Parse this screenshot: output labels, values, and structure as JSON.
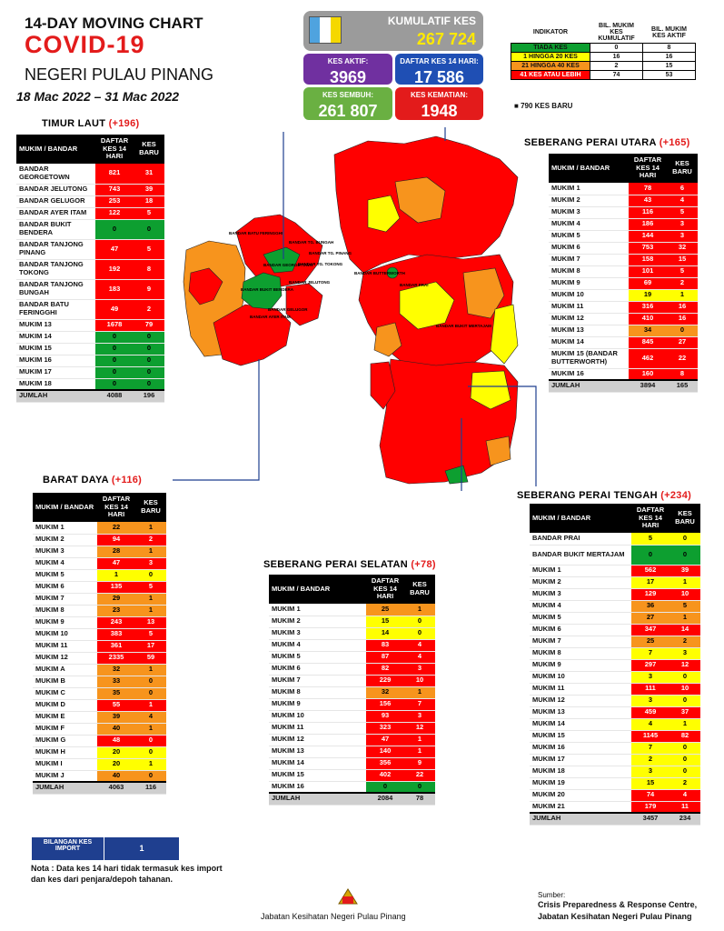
{
  "header": {
    "line1": "14-DAY MOVING CHART",
    "line2": "COVID-19",
    "line3": "NEGERI PULAU PINANG",
    "dates": "18 Mac 2022 – 31 Mac 2022"
  },
  "stats": {
    "kumulatif_label": "KUMULATIF KES",
    "kumulatif_value": "267 724",
    "aktif_label": "KES AKTIF:",
    "aktif_value": "3969",
    "daftar_label": "DAFTAR KES 14 HARI:",
    "daftar_value": "17 586",
    "sembuh_label": "KES SEMBUH:",
    "sembuh_value": "261 807",
    "kematian_label": "KES KEMATIAN:",
    "kematian_value": "1948"
  },
  "indicator": {
    "h1": "INDIKATOR",
    "h2": "BIL. MUKIM KES KUMULATIF",
    "h3": "BIL. MUKIM KES AKTIF",
    "rows": [
      {
        "label": "TIADA KES",
        "cum": "0",
        "act": "8",
        "color": "#0d9f30"
      },
      {
        "label": "1 HINGGA 20 KES",
        "cum": "16",
        "act": "16",
        "color": "#ffff00"
      },
      {
        "label": "21 HINGGA 40 KES",
        "cum": "2",
        "act": "15",
        "color": "#f7941d"
      },
      {
        "label": "41 KES ATAU LEBIH",
        "cum": "74",
        "act": "53",
        "color": "#ff0000"
      }
    ],
    "new_cases": "790 KES BARU"
  },
  "colors": {
    "red": "#ff0000",
    "orange": "#f7941d",
    "yellow": "#ffff00",
    "green": "#0d9f30",
    "title_red": "#e31b1b",
    "blue": "#1f3f8f"
  },
  "timur_laut": {
    "title": "TIMUR LAUT",
    "plus": "(+196)",
    "head": [
      "MUKIM / BANDAR",
      "DAFTAR KES 14 HARI",
      "KES BARU"
    ],
    "rows": [
      [
        "BANDAR GEORGETOWN",
        "821",
        "31",
        "r"
      ],
      [
        "BANDAR JELUTONG",
        "743",
        "39",
        "r"
      ],
      [
        "BANDAR GELUGOR",
        "253",
        "18",
        "r"
      ],
      [
        "BANDAR AYER ITAM",
        "122",
        "5",
        "r"
      ],
      [
        "BANDAR BUKIT BENDERA",
        "0",
        "0",
        "g"
      ],
      [
        "BANDAR TANJONG PINANG",
        "47",
        "5",
        "r"
      ],
      [
        "BANDAR TANJONG TOKONG",
        "192",
        "8",
        "r"
      ],
      [
        "BANDAR TANJONG BUNGAH",
        "183",
        "9",
        "r"
      ],
      [
        "BANDAR BATU FERINGGHI",
        "49",
        "2",
        "r"
      ],
      [
        "MUKIM 13",
        "1678",
        "79",
        "r"
      ],
      [
        "MUKIM 14",
        "0",
        "0",
        "g"
      ],
      [
        "MUKIM 15",
        "0",
        "0",
        "g"
      ],
      [
        "MUKIM 16",
        "0",
        "0",
        "g"
      ],
      [
        "MUKIM 17",
        "0",
        "0",
        "g"
      ],
      [
        "MUKIM 18",
        "0",
        "0",
        "g"
      ]
    ],
    "total": [
      "JUMLAH",
      "4088",
      "196"
    ]
  },
  "barat_daya": {
    "title": "BARAT DAYA",
    "plus": "(+116)",
    "head": [
      "MUKIM / BANDAR",
      "DAFTAR KES 14 HARI",
      "KES BARU"
    ],
    "rows": [
      [
        "MUKIM 1",
        "22",
        "1",
        "o"
      ],
      [
        "MUKIM 2",
        "94",
        "2",
        "r"
      ],
      [
        "MUKIM 3",
        "28",
        "1",
        "o"
      ],
      [
        "MUKIM 4",
        "47",
        "3",
        "r"
      ],
      [
        "MUKIM 5",
        "1",
        "0",
        "y"
      ],
      [
        "MUKIM 6",
        "135",
        "5",
        "r"
      ],
      [
        "MUKIM 7",
        "29",
        "1",
        "o"
      ],
      [
        "MUKIM 8",
        "23",
        "1",
        "o"
      ],
      [
        "MUKIM 9",
        "243",
        "13",
        "r"
      ],
      [
        "MUKIM 10",
        "383",
        "5",
        "r"
      ],
      [
        "MUKIM 11",
        "361",
        "17",
        "r"
      ],
      [
        "MUKIM 12",
        "2335",
        "59",
        "r"
      ],
      [
        "MUKIM A",
        "32",
        "1",
        "o"
      ],
      [
        "MUKIM B",
        "33",
        "0",
        "o"
      ],
      [
        "MUKIM C",
        "35",
        "0",
        "o"
      ],
      [
        "MUKIM D",
        "55",
        "1",
        "r"
      ],
      [
        "MUKIM E",
        "39",
        "4",
        "o"
      ],
      [
        "MUKIM F",
        "40",
        "1",
        "o"
      ],
      [
        "MUKIM G",
        "48",
        "0",
        "r"
      ],
      [
        "MUKIM H",
        "20",
        "0",
        "y"
      ],
      [
        "MUKIM I",
        "20",
        "1",
        "y"
      ],
      [
        "MUKIM J",
        "40",
        "0",
        "o"
      ]
    ],
    "total": [
      "JUMLAH",
      "4063",
      "116"
    ]
  },
  "spu": {
    "title": "SEBERANG PERAI UTARA",
    "plus": "(+165)",
    "head": [
      "MUKIM / BANDAR",
      "DAFTAR KES 14 HARI",
      "KES BARU"
    ],
    "rows": [
      [
        "MUKIM 1",
        "78",
        "6",
        "r"
      ],
      [
        "MUKIM 2",
        "43",
        "4",
        "r"
      ],
      [
        "MUKIM 3",
        "116",
        "5",
        "r"
      ],
      [
        "MUKIM 4",
        "186",
        "3",
        "r"
      ],
      [
        "MUKIM 5",
        "144",
        "3",
        "r"
      ],
      [
        "MUKIM 6",
        "753",
        "32",
        "r"
      ],
      [
        "MUKIM 7",
        "158",
        "15",
        "r"
      ],
      [
        "MUKIM 8",
        "101",
        "5",
        "r"
      ],
      [
        "MUKIM 9",
        "69",
        "2",
        "r"
      ],
      [
        "MUKIM 10",
        "19",
        "1",
        "y"
      ],
      [
        "MUKIM 11",
        "316",
        "16",
        "r"
      ],
      [
        "MUKIM 12",
        "410",
        "16",
        "r"
      ],
      [
        "MUKIM 13",
        "34",
        "0",
        "o"
      ],
      [
        "MUKIM 14",
        "845",
        "27",
        "r"
      ],
      [
        "MUKIM 15 (BANDAR BUTTERWORTH)",
        "462",
        "22",
        "r"
      ],
      [
        "MUKIM 16",
        "160",
        "8",
        "r"
      ]
    ],
    "total": [
      "JUMLAH",
      "3894",
      "165"
    ]
  },
  "sps": {
    "title": "SEBERANG PERAI SELATAN",
    "plus": "(+78)",
    "head": [
      "MUKIM / BANDAR",
      "DAFTAR KES 14 HARI",
      "KES BARU"
    ],
    "rows": [
      [
        "MUKIM 1",
        "25",
        "1",
        "o"
      ],
      [
        "MUKIM 2",
        "15",
        "0",
        "y"
      ],
      [
        "MUKIM 3",
        "14",
        "0",
        "y"
      ],
      [
        "MUKIM 4",
        "83",
        "4",
        "r"
      ],
      [
        "MUKIM 5",
        "87",
        "4",
        "r"
      ],
      [
        "MUKIM 6",
        "82",
        "3",
        "r"
      ],
      [
        "MUKIM 7",
        "229",
        "10",
        "r"
      ],
      [
        "MUKIM 8",
        "32",
        "1",
        "o"
      ],
      [
        "MUKIM 9",
        "156",
        "7",
        "r"
      ],
      [
        "MUKIM 10",
        "93",
        "3",
        "r"
      ],
      [
        "MUKIM 11",
        "323",
        "12",
        "r"
      ],
      [
        "MUKIM 12",
        "47",
        "1",
        "r"
      ],
      [
        "MUKIM 13",
        "140",
        "1",
        "r"
      ],
      [
        "MUKIM 14",
        "356",
        "9",
        "r"
      ],
      [
        "MUKIM 15",
        "402",
        "22",
        "r"
      ],
      [
        "MUKIM 16",
        "0",
        "0",
        "g"
      ]
    ],
    "total": [
      "JUMLAH",
      "2084",
      "78"
    ]
  },
  "spt": {
    "title": "SEBERANG PERAI TENGAH",
    "plus": "(+234)",
    "head": [
      "MUKIM / BANDAR",
      "DAFTAR KES 14 HARI",
      "KES BARU"
    ],
    "rows": [
      [
        "BANDAR PRAI",
        "5",
        "0",
        "y"
      ],
      [
        "BANDAR BUKIT MERTAJAM",
        "0",
        "0",
        "g"
      ],
      [
        "MUKIM 1",
        "562",
        "39",
        "r"
      ],
      [
        "MUKIM 2",
        "17",
        "1",
        "y"
      ],
      [
        "MUKIM 3",
        "129",
        "10",
        "r"
      ],
      [
        "MUKIM 4",
        "36",
        "5",
        "o"
      ],
      [
        "MUKIM 5",
        "27",
        "1",
        "o"
      ],
      [
        "MUKIM 6",
        "347",
        "14",
        "r"
      ],
      [
        "MUKIM 7",
        "25",
        "2",
        "o"
      ],
      [
        "MUKIM 8",
        "7",
        "3",
        "y"
      ],
      [
        "MUKIM 9",
        "297",
        "12",
        "r"
      ],
      [
        "MUKIM 10",
        "3",
        "0",
        "y"
      ],
      [
        "MUKIM 11",
        "111",
        "10",
        "r"
      ],
      [
        "MUKIM 12",
        "3",
        "0",
        "y"
      ],
      [
        "MUKIM 13",
        "459",
        "37",
        "r"
      ],
      [
        "MUKIM 14",
        "4",
        "1",
        "y"
      ],
      [
        "MUKIM 15",
        "1145",
        "82",
        "r"
      ],
      [
        "MUKIM 16",
        "7",
        "0",
        "y"
      ],
      [
        "MUKIM 17",
        "2",
        "0",
        "y"
      ],
      [
        "MUKIM 18",
        "3",
        "0",
        "y"
      ],
      [
        "MUKIM 19",
        "15",
        "2",
        "y"
      ],
      [
        "MUKIM 20",
        "74",
        "4",
        "r"
      ],
      [
        "MUKIM 21",
        "179",
        "11",
        "r"
      ]
    ],
    "total": [
      "JUMLAH",
      "3457",
      "234"
    ]
  },
  "import": {
    "label": "BILANGAN KES IMPORT",
    "value": "1"
  },
  "note": "Nota : Data kes 14 hari tidak termasuk kes import dan kes dari penjara/depoh tahanan.",
  "footer": {
    "dept": "Jabatan Kesihatan Negeri Pulau Pinang",
    "sumber": "Sumber:",
    "src1": "Crisis Preparedness & Response Centre,",
    "src2": "Jabatan Kesihatan Negeri Pulau Pinang"
  },
  "map_labels": [
    "BANDAR BATU FERINGGHI",
    "BANDAR TG. BUNGAH",
    "BANDAR TG. PINANG",
    "BANDAR TG. TOKONG",
    "BANDAR GEORGETOWN",
    "BANDAR JELUTONG",
    "BANDAR BUKIT BENDERA",
    "BANDAR AYER ITAM",
    "BANDAR GELUGOR",
    "BANDAR BUTTERWORTH",
    "BANDAR PRAI",
    "BANDAR BUKIT MERTAJAM"
  ]
}
